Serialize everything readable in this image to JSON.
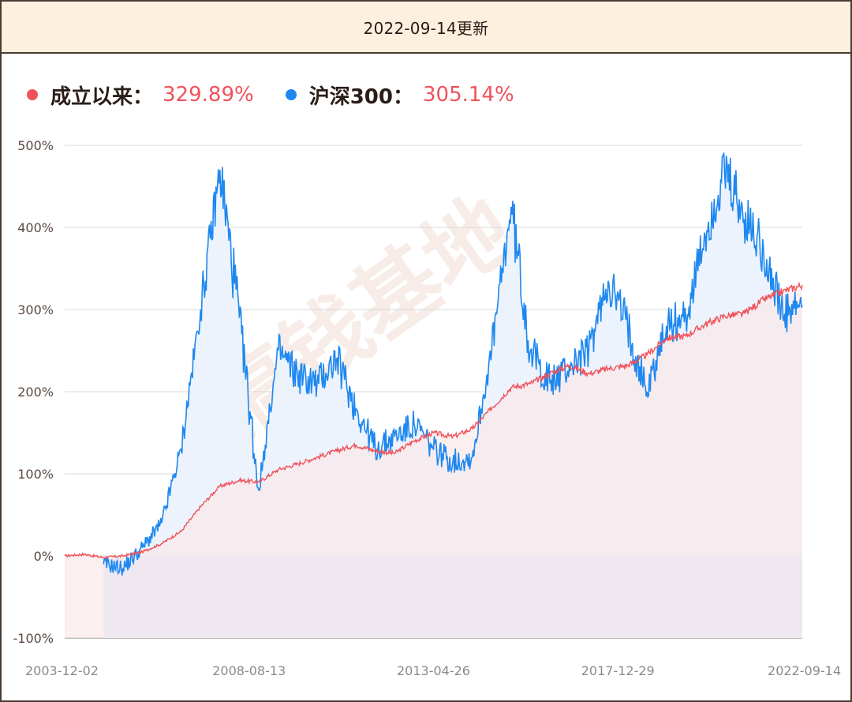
{
  "header": {
    "title": "2022-09-14更新"
  },
  "legend": [
    {
      "label": "成立以来：",
      "value": "329.89%",
      "color": "#f0525a"
    },
    {
      "label": "沪深300：",
      "value": "305.14%",
      "color": "#1e88f0"
    }
  ],
  "watermark": "搞钱基地",
  "colors": {
    "fund_line": "#f0525a",
    "index_line": "#1e88f0",
    "fund_fill": "#f5e6ec",
    "index_fill": "#eaf2fc",
    "grid": "#d8d8d8",
    "header_bg": "#fdf0de",
    "border": "#4a3b33"
  },
  "chart_data": {
    "type": "line",
    "title": "",
    "xlabel": "",
    "ylabel": "",
    "ylim": [
      -100,
      500
    ],
    "yticks": [
      "500%",
      "400%",
      "300%",
      "200%",
      "100%",
      "0%",
      "-100%"
    ],
    "xticks": [
      "2003-12-02",
      "2008-08-13",
      "2013-04-26",
      "2017-12-29",
      "2022-09-14"
    ],
    "grid": true,
    "legend_position": "top-left",
    "x": [
      "2003-12",
      "2004-06",
      "2005-01",
      "2005-06",
      "2006-01",
      "2006-06",
      "2007-01",
      "2007-05",
      "2007-10",
      "2008-04",
      "2008-11",
      "2009-07",
      "2010-01",
      "2010-07",
      "2010-11",
      "2011-06",
      "2012-01",
      "2012-06",
      "2013-01",
      "2013-06",
      "2014-01",
      "2014-07",
      "2015-01",
      "2015-06",
      "2016-01",
      "2016-06",
      "2017-01",
      "2017-06",
      "2018-01",
      "2018-06",
      "2019-01",
      "2019-06",
      "2020-01",
      "2020-07",
      "2021-02",
      "2021-07",
      "2022-01",
      "2022-04",
      "2022-09"
    ],
    "series": [
      {
        "name": "成立以来",
        "final": 329.89,
        "values": [
          0,
          2,
          -2,
          0,
          5,
          15,
          30,
          60,
          85,
          92,
          90,
          105,
          112,
          120,
          128,
          135,
          128,
          125,
          140,
          150,
          145,
          155,
          180,
          205,
          210,
          222,
          232,
          222,
          228,
          232,
          245,
          265,
          268,
          282,
          292,
          295,
          312,
          322,
          329.89
        ]
      },
      {
        "name": "沪深300",
        "final": 305.14,
        "values": [
          null,
          null,
          -10,
          -15,
          10,
          40,
          130,
          300,
          470,
          290,
          80,
          250,
          220,
          210,
          240,
          180,
          130,
          145,
          160,
          130,
          115,
          120,
          250,
          425,
          250,
          210,
          230,
          250,
          335,
          280,
          200,
          280,
          290,
          390,
          465,
          410,
          375,
          290,
          305.14
        ]
      }
    ]
  }
}
